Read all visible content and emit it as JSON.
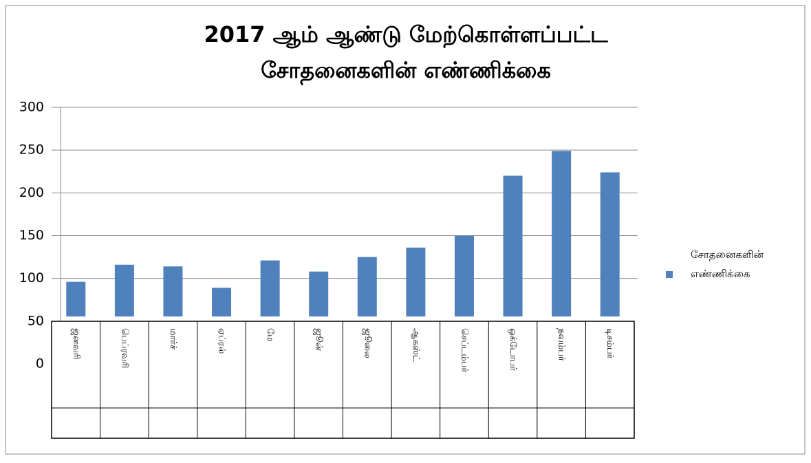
{
  "chart_data": {
    "type": "bar",
    "title": [
      "2017 ஆம் ஆண்டு மேற்கொள்ளப்பட்ட",
      "சோதனைகளின் எண்ணிக்கை"
    ],
    "categories": [
      "ஜனவரி",
      "பெப்ரவரி",
      "மார்ச்",
      "ஏப்ரல்",
      "மே",
      "ஜூன்",
      "ஜூலை",
      "ஆகஸ்ட்",
      "செப்டம்பர்",
      "ஒக்டோபர்",
      "நவம்பர்",
      "டிசம்பர்"
    ],
    "series": [
      {
        "name": "சோதனைகளின் எண்ணிக்கை",
        "color": "#4f81bd",
        "values": [
          96,
          116,
          114,
          89,
          121,
          108,
          125,
          136,
          150,
          220,
          249,
          224
        ]
      }
    ],
    "ylim": [
      0,
      300
    ],
    "yticks": [
      0,
      50,
      100,
      150,
      200,
      250,
      300
    ],
    "grid": true,
    "legend": "right"
  }
}
